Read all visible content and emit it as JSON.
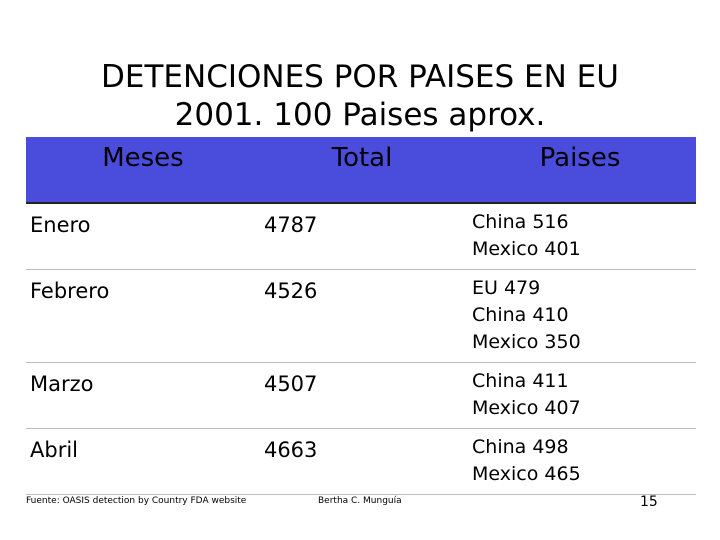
{
  "title": {
    "line1": "DETENCIONES POR PAISES EN EU",
    "line2": "2001. 100 Paises aprox."
  },
  "table": {
    "headers": [
      "Meses",
      "Total",
      "Paises"
    ],
    "rows": [
      {
        "mes": "Enero",
        "total": "4787",
        "paises": [
          "China 516",
          "Mexico 401"
        ]
      },
      {
        "mes": "Febrero",
        "total": "4526",
        "paises": [
          "EU 479",
          "China 410",
          "Mexico 350"
        ]
      },
      {
        "mes": "Marzo",
        "total": "4507",
        "paises": [
          "China 411",
          "Mexico 407"
        ]
      },
      {
        "mes": "Abril",
        "total": "4663",
        "paises": [
          "China 498",
          "Mexico 465"
        ]
      }
    ]
  },
  "footer": {
    "source": "Fuente: OASIS detection by Country FDA website",
    "author": "Bertha C. Munguía",
    "page": "15"
  },
  "colors": {
    "header_bg": "#4a4ddc"
  }
}
